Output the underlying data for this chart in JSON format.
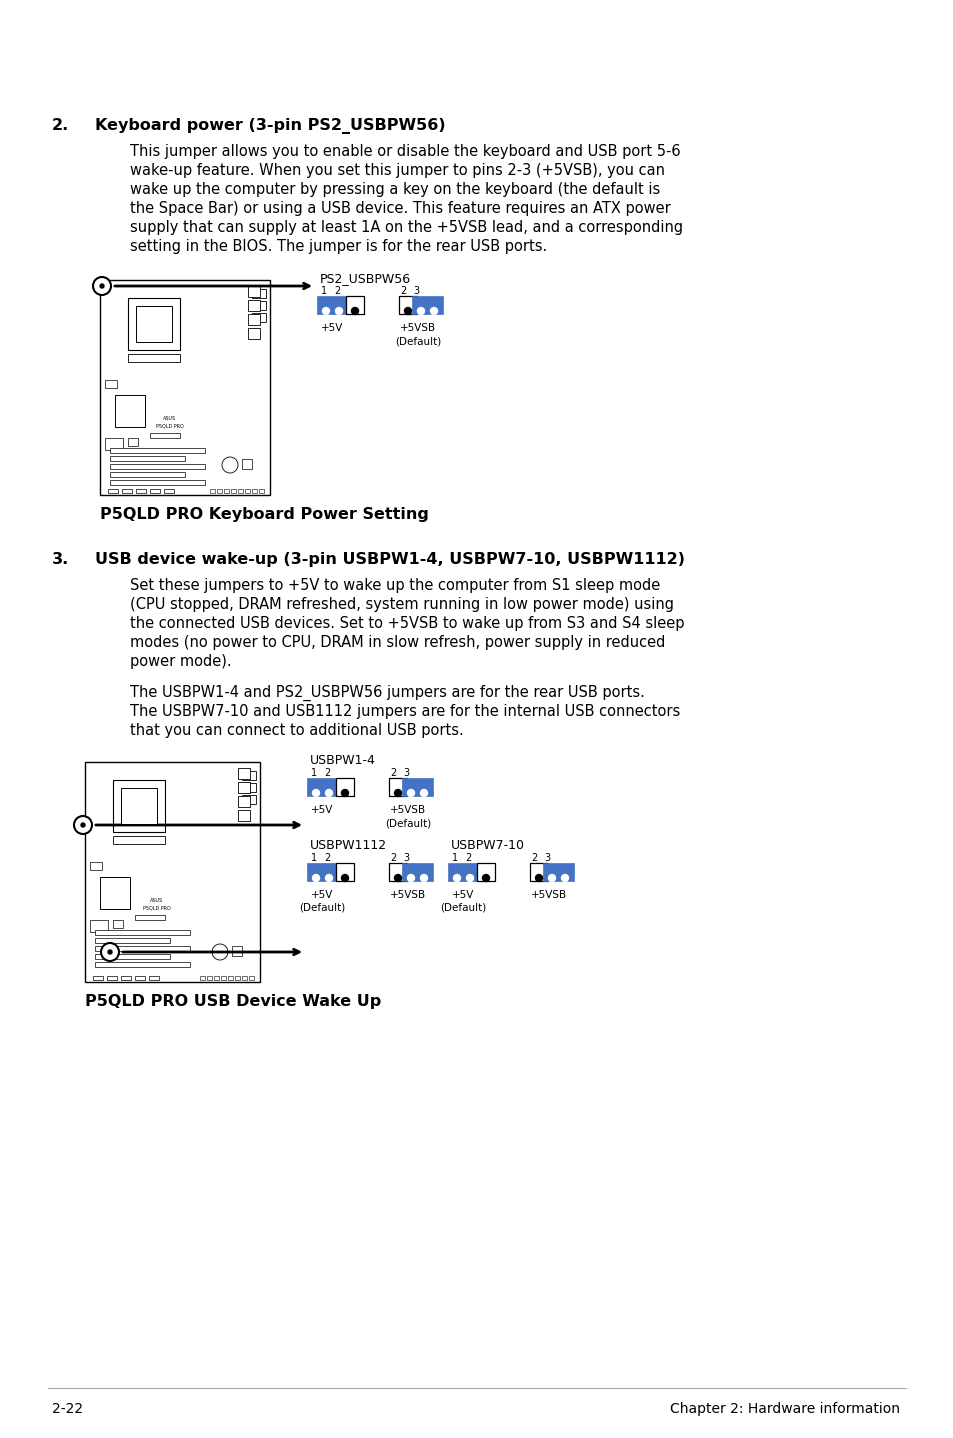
{
  "bg_color": "#ffffff",
  "section2_num": "2.",
  "section2_heading": "Keyboard power (3-pin PS2_USBPW56)",
  "section2_body": [
    "This jumper allows you to enable or disable the keyboard and USB port 5-6",
    "wake-up feature. When you set this jumper to pins 2-3 (+5VSB), you can",
    "wake up the computer by pressing a key on the keyboard (the default is",
    "the Space Bar) or using a USB device. This feature requires an ATX power",
    "supply that can supply at least 1A on the +5VSB lead, and a corresponding",
    "setting in the BIOS. The jumper is for the rear USB ports."
  ],
  "section2_diag_label": "PS2_USBPW56",
  "section2_caption": "P5QLD PRO Keyboard Power Setting",
  "section3_num": "3.",
  "section3_heading": "USB device wake-up (3-pin USBPW1-4, USBPW7-10, USBPW1112)",
  "section3_body1": [
    "Set these jumpers to +5V to wake up the computer from S1 sleep mode",
    "(CPU stopped, DRAM refreshed, system running in low power mode) using",
    "the connected USB devices. Set to +5VSB to wake up from S3 and S4 sleep",
    "modes (no power to CPU, DRAM in slow refresh, power supply in reduced",
    "power mode)."
  ],
  "section3_body2": [
    "The USBPW1-4 and PS2_USBPW56 jumpers are for the rear USB ports.",
    "The USBPW7-10 and USB1112 jumpers are for the internal USB connectors",
    "that you can connect to additional USB ports."
  ],
  "section3_caption": "P5QLD PRO USB Device Wake Up",
  "footer_left": "2-22",
  "footer_right": "Chapter 2: Hardware information",
  "blue": "#4472C4",
  "black": "#000000",
  "white": "#ffffff",
  "gray_line": "#aaaaaa"
}
